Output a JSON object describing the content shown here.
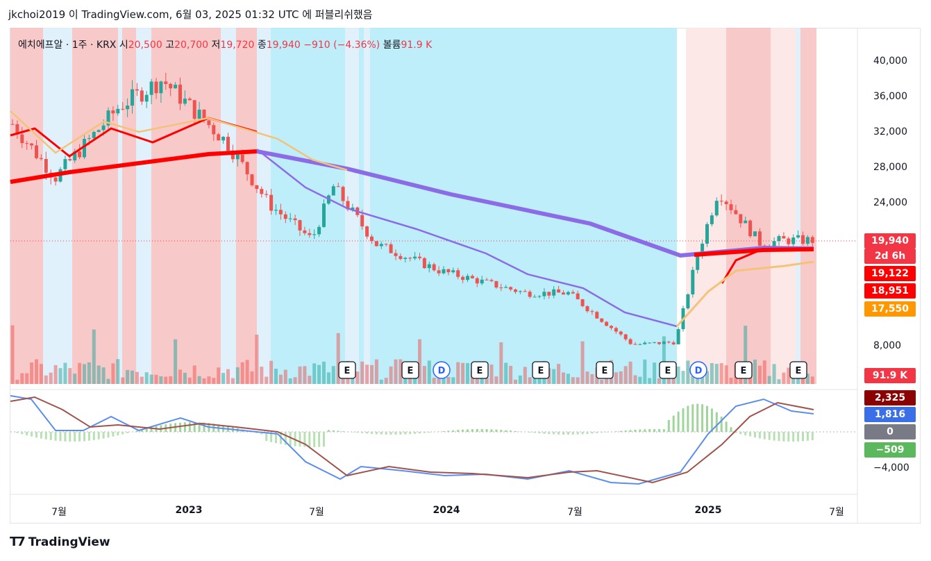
{
  "header": {
    "publish_line": "jkchoi2019 이 TradingView.com, 6월 03, 2025 01:32 UTC 에 퍼블리쉬했음"
  },
  "legend": {
    "symbol": "에치에프알 · 1주 · KRX",
    "open_label": "시",
    "open": "20,500",
    "high_label": "고",
    "high": "20,700",
    "low_label": "저",
    "low": "19,720",
    "close_label": "종",
    "close": "19,940",
    "change": "−910 (−4.36%)",
    "volume_label": "볼륨",
    "volume": "91.9 K"
  },
  "price_tags": {
    "last_price": "19,940",
    "countdown": "2d 6h",
    "ma_a": "19,122",
    "ma_b": "18,951",
    "ma_c": "17,550",
    "volume": "91.9 K",
    "macd_signal": "2,325",
    "macd_line": "1,816",
    "zero": "0",
    "histogram": "−509"
  },
  "colors": {
    "up": "#26a69a",
    "down": "#ef5350",
    "red_band": "#f7c0c0",
    "pink_band": "#fde4e4",
    "blue_band": "#b2ebf9",
    "light_blue_band": "#dbeffb",
    "ma_thick_red": "#ff0000",
    "ma_purple": "#8c6ce6",
    "ma_orange": "#f5c27a",
    "macd_line": "#5b8def",
    "signal_line": "#a0524a",
    "hist_up": "#9fd49a",
    "hist_down": "#b7e0b3"
  },
  "chart_data": {
    "type": "candlestick",
    "price_axis_ticks": [
      "40,000",
      "36,000",
      "32,000",
      "28,000",
      "24,000",
      "8,000"
    ],
    "macd_axis_ticks": [
      "−4,000"
    ],
    "time_axis_labels": [
      {
        "text": "7월",
        "bold": false
      },
      {
        "text": "2023",
        "bold": true
      },
      {
        "text": "7월",
        "bold": false
      },
      {
        "text": "2024",
        "bold": true
      },
      {
        "text": "7월",
        "bold": false
      },
      {
        "text": "2025",
        "bold": true
      },
      {
        "text": "7월",
        "bold": false
      }
    ],
    "event_markers": [
      "E",
      "E",
      "D",
      "E",
      "E",
      "E",
      "E",
      "D",
      "E",
      "E"
    ],
    "approx_price_path": [
      {
        "t": "2022-05",
        "close": 33000
      },
      {
        "t": "2022-07",
        "close": 27000
      },
      {
        "t": "2022-10",
        "close": 35000
      },
      {
        "t": "2022-12",
        "close": 38000
      },
      {
        "t": "2023-03",
        "close": 31000
      },
      {
        "t": "2023-05",
        "close": 24000
      },
      {
        "t": "2023-07",
        "close": 20000
      },
      {
        "t": "2023-08",
        "close": 26000
      },
      {
        "t": "2023-10",
        "close": 19500
      },
      {
        "t": "2024-01",
        "close": 16500
      },
      {
        "t": "2024-05",
        "close": 14000
      },
      {
        "t": "2024-07",
        "close": 14000
      },
      {
        "t": "2024-10",
        "close": 8200
      },
      {
        "t": "2024-12",
        "close": 8500
      },
      {
        "t": "2025-01",
        "close": 18000
      },
      {
        "t": "2025-02",
        "close": 25500
      },
      {
        "t": "2025-04",
        "close": 19500
      },
      {
        "t": "2025-05",
        "close": 19940
      }
    ]
  }
}
